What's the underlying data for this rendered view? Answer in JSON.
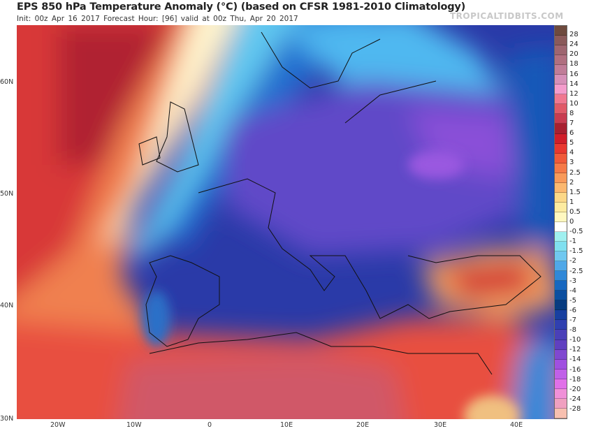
{
  "header": {
    "title": "EPS 850 hPa Temperature Anomaly (°C) (based on CFSR 1981-2010 Climatology)",
    "subtitle": "Init: 00z Apr 16 2017   Forecast Hour: [96]   valid at 00z Thu, Apr 20 2017",
    "watermark": "TROPICALTIDBITS.COM"
  },
  "axes": {
    "lat_labels": [
      "60N",
      "50N",
      "40N",
      "30N"
    ],
    "lon_labels": [
      "20W",
      "10W",
      "0",
      "10E",
      "20E",
      "30E",
      "40E"
    ]
  },
  "colorbar": {
    "labels": [
      "28",
      "24",
      "20",
      "18",
      "16",
      "14",
      "12",
      "10",
      "8",
      "7",
      "6",
      "5",
      "4",
      "3",
      "2.5",
      "2",
      "1.5",
      "1",
      "0.5",
      "0",
      "-0.5",
      "-1",
      "-1.5",
      "-2",
      "-2.5",
      "-3",
      "-4",
      "-5",
      "-6",
      "-7",
      "-8",
      "-10",
      "-12",
      "-14",
      "-16",
      "-18",
      "-20",
      "-24",
      "-28"
    ],
    "colors": [
      "#6e4a3e",
      "#8a5a5a",
      "#9e6670",
      "#b07080",
      "#c07d98",
      "#d690b8",
      "#f49ccc",
      "#f07890",
      "#e05a68",
      "#c83c50",
      "#a82030",
      "#d01e2a",
      "#e83830",
      "#f05a3a",
      "#f57a48",
      "#f89a5a",
      "#fbb870",
      "#fcd888",
      "#fdeba0",
      "#fff8c0",
      "#ffffff",
      "#a0f0f0",
      "#80e0f0",
      "#70c8f0",
      "#50a8e8",
      "#3088d8",
      "#1868c0",
      "#0c4fa0",
      "#083c80",
      "#1840a0",
      "#3040b0",
      "#4a40b8",
      "#6040c0",
      "#8048d0",
      "#a050e0",
      "#c060e8",
      "#e070e8",
      "#f090d8",
      "#f0a0c0",
      "#f8c0b0"
    ]
  }
}
